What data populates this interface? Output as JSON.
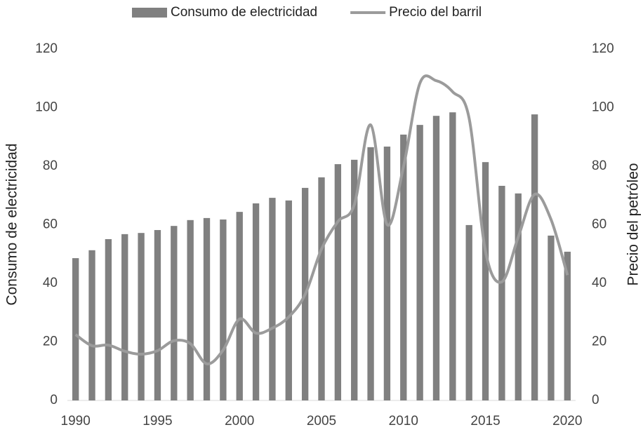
{
  "chart_data": {
    "type": "bar-line",
    "x": [
      1990,
      1991,
      1992,
      1993,
      1994,
      1995,
      1996,
      1997,
      1998,
      1999,
      2000,
      2001,
      2002,
      2003,
      2004,
      2005,
      2006,
      2007,
      2008,
      2009,
      2010,
      2011,
      2012,
      2013,
      2014,
      2015,
      2016,
      2017,
      2018,
      2019,
      2020
    ],
    "series": [
      {
        "name": "Consumo de electricidad",
        "kind": "bar",
        "color": "#808080",
        "values": [
          48.6,
          51.3,
          55.1,
          56.8,
          57.2,
          58.2,
          59.6,
          61.6,
          62.3,
          61.8,
          64.4,
          67.3,
          69.2,
          68.3,
          72.6,
          76.2,
          80.7,
          82.2,
          86.5,
          86.7,
          90.8,
          94.1,
          97.2,
          98.4,
          59.9,
          81.4,
          73.3,
          70.7,
          97.7,
          56.3,
          50.8
        ]
      },
      {
        "name": "Precio del barril",
        "kind": "line",
        "axis": "y2",
        "color": "#9b9b9b",
        "values": [
          22.5,
          18.7,
          18.9,
          16.8,
          15.8,
          17,
          20.4,
          19.4,
          12.5,
          17.2,
          27.8,
          23,
          24.7,
          28.5,
          36.2,
          51.7,
          61.1,
          66.8,
          94.1,
          60.1,
          79.8,
          108.3,
          109.2,
          105.4,
          96.5,
          51,
          40.5,
          55.8,
          70.4,
          61.8,
          42.8
        ]
      }
    ],
    "ylabel": "Consumo de electricidad",
    "y2label": "Precio del petróleo",
    "xlim": [
      1989.5,
      2020.5
    ],
    "xticks": [
      1990,
      1995,
      2000,
      2005,
      2010,
      2015,
      2020
    ],
    "ylim": [
      0,
      120
    ],
    "yticks": [
      0,
      20,
      40,
      60,
      80,
      100,
      120
    ],
    "y2lim": [
      0,
      120
    ],
    "y2ticks": [
      0,
      20,
      40,
      60,
      80,
      100,
      120
    ],
    "legend": "top"
  }
}
